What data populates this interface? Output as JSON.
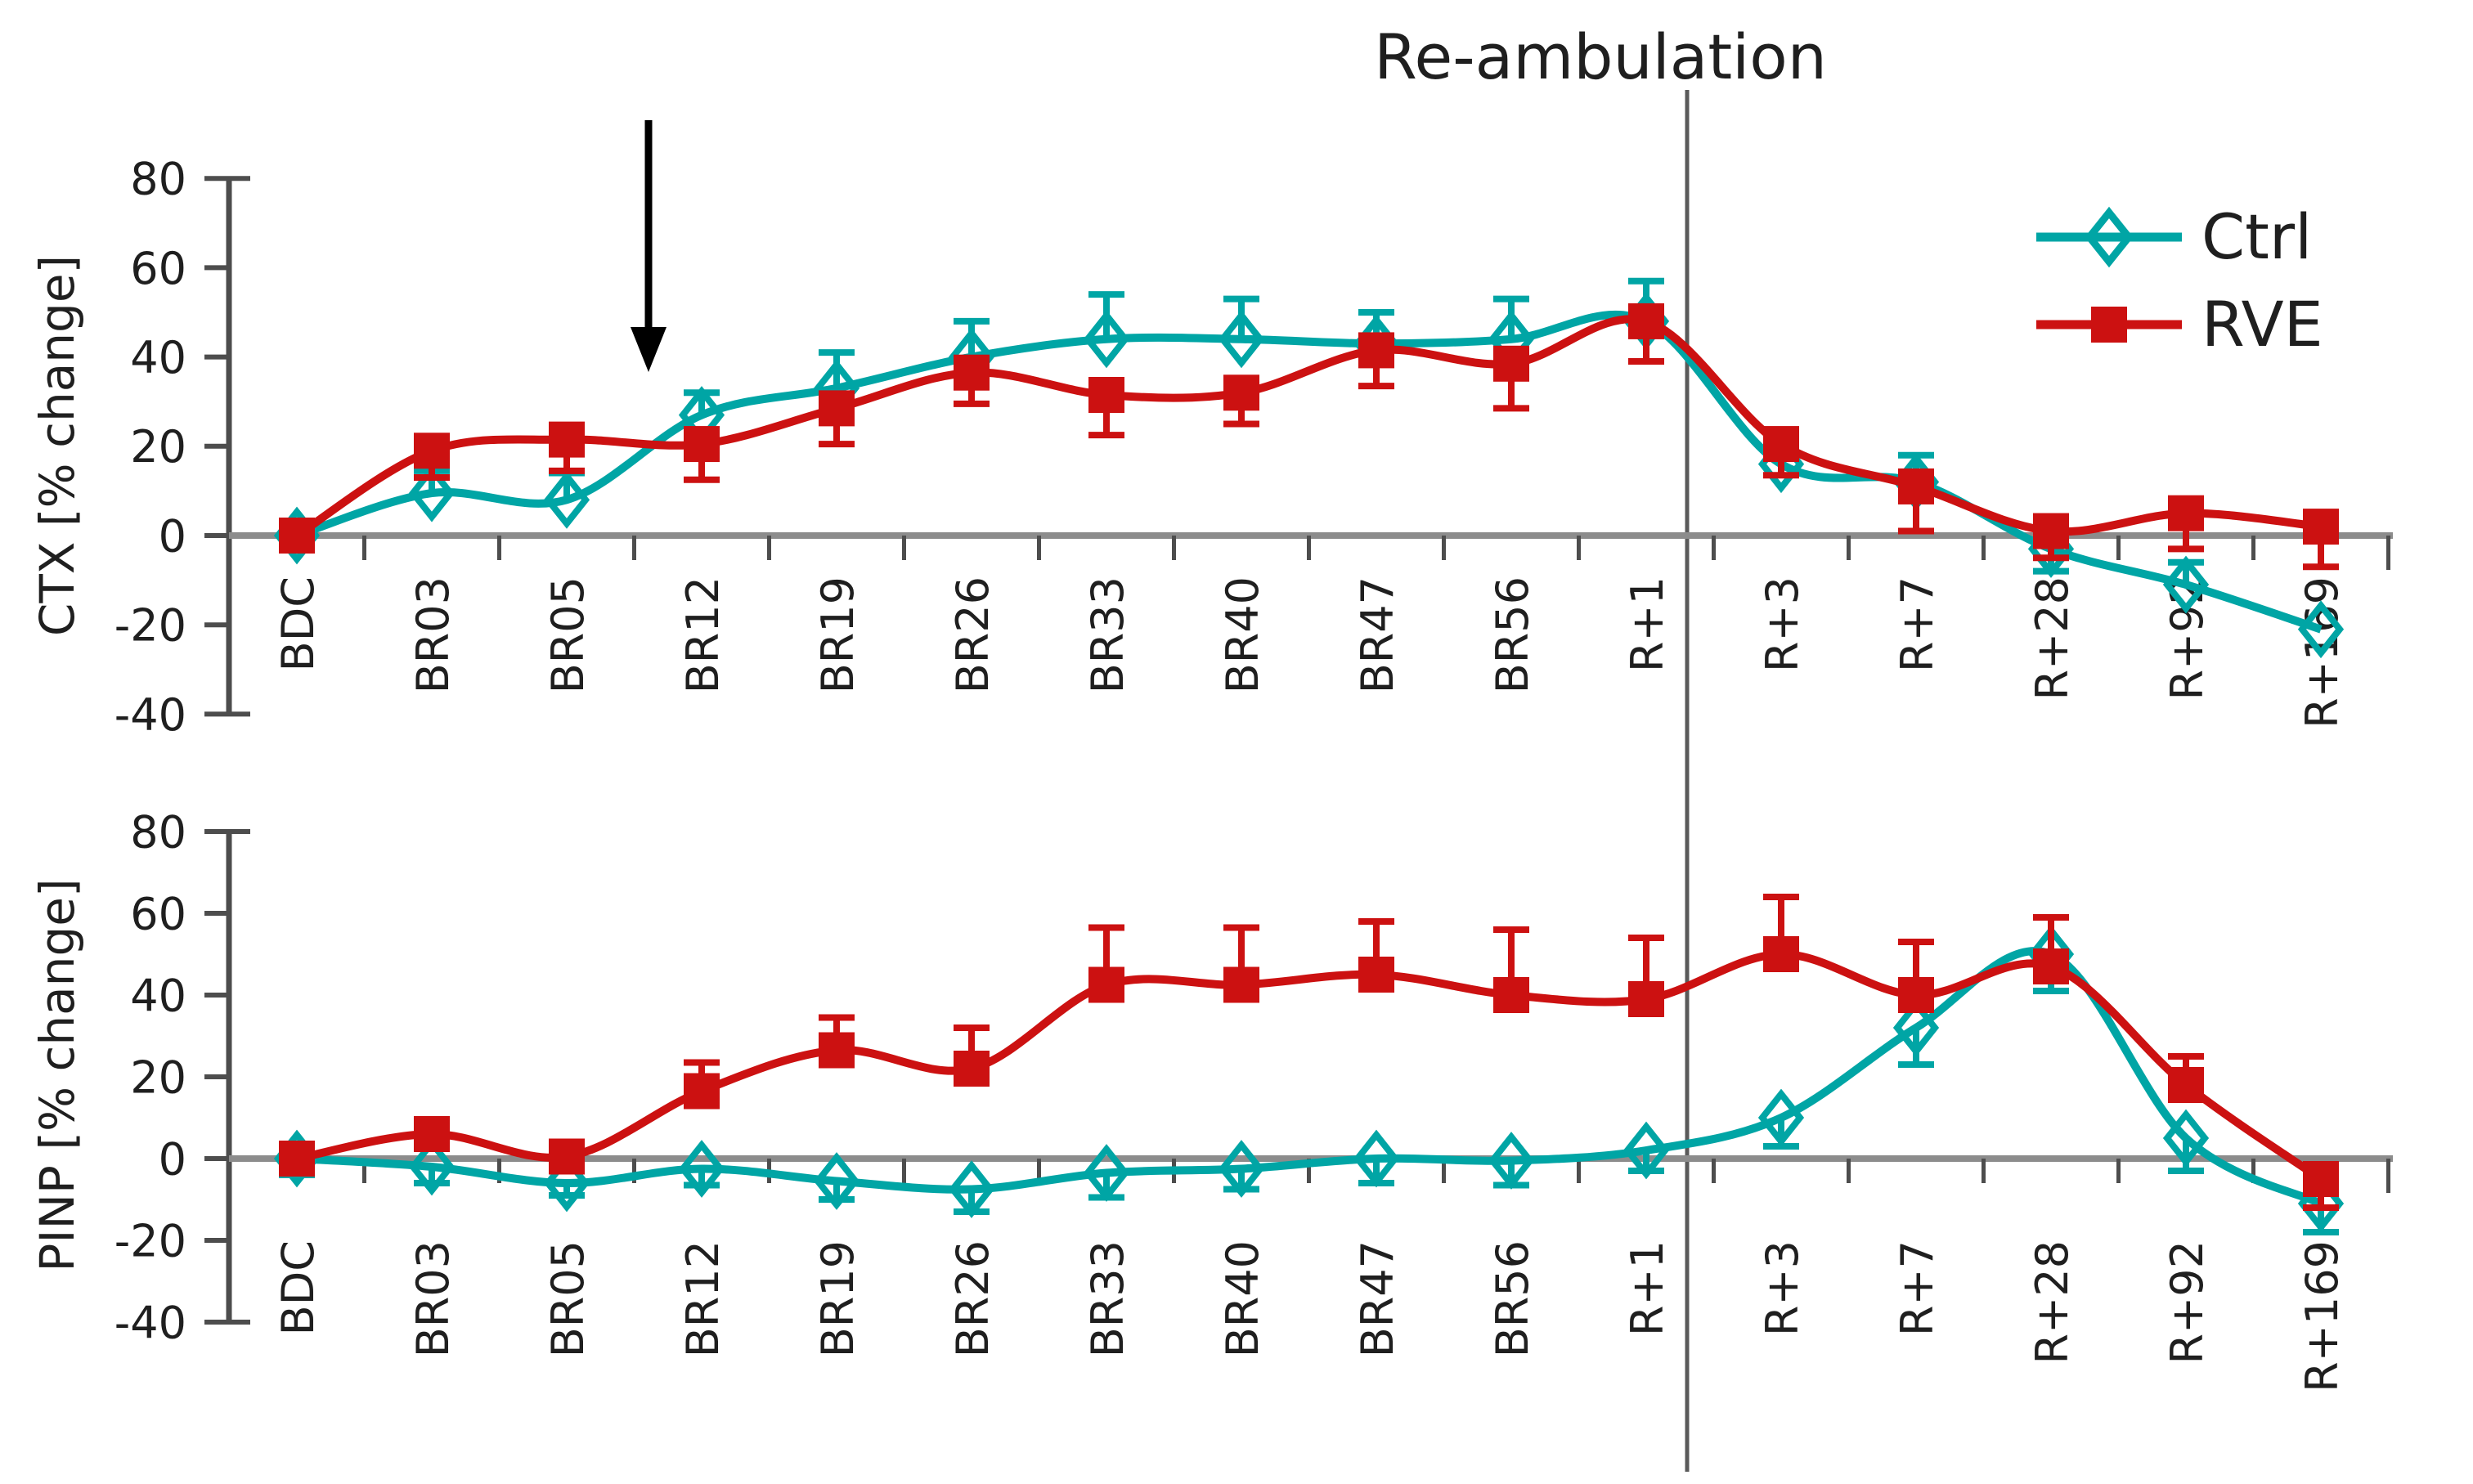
{
  "annotations": {
    "reambulation": "Re-ambulation"
  },
  "legend": {
    "items": [
      {
        "label": "Ctrl",
        "marker": "open-diamond"
      },
      {
        "label": "RVE",
        "marker": "filled-square"
      }
    ]
  },
  "colors": {
    "ctrl": "#00A5A5",
    "rve": "#CC1111",
    "axis_line": "#8C8C8C",
    "axis_dark": "#4D4D4D",
    "text": "#1F1F1F",
    "annotation_line": "#5A5A5A",
    "arrow": "#000000"
  },
  "chart_data": [
    {
      "type": "line",
      "id": "ctx",
      "ylabel": "CTX  [% change]",
      "ylim": [
        -40,
        80
      ],
      "yticks": [
        80,
        60,
        40,
        20,
        0,
        -20,
        -40
      ],
      "grid": false,
      "categories": [
        "BDC",
        "BR03",
        "BR05",
        "BR12",
        "BR19",
        "BR26",
        "BR33",
        "BR40",
        "BR47",
        "BR56",
        "R+1",
        "R+3",
        "R+7",
        "R+28",
        "R+92",
        "R+169"
      ],
      "series": [
        {
          "name": "Ctrl",
          "values": [
            0,
            9.5,
            8,
            27,
            33,
            40,
            44,
            44,
            43,
            44,
            48,
            16,
            12,
            -3,
            -11,
            -21
          ],
          "err_up": [
            3,
            5,
            6,
            5,
            8,
            8,
            10,
            9,
            7,
            9,
            9,
            7,
            6,
            0,
            5,
            0
          ],
          "err_down": [
            3,
            0,
            0,
            0,
            0,
            0,
            0,
            0,
            0,
            0,
            0,
            0,
            0,
            5,
            0,
            0
          ]
        },
        {
          "name": "RVE",
          "values": [
            0,
            19,
            21.5,
            20.5,
            28.5,
            36.5,
            31.5,
            32,
            41.5,
            38.5,
            48,
            20.5,
            11,
            1,
            5,
            2
          ],
          "err_up": [
            3,
            0,
            3,
            0,
            0,
            0,
            0,
            0,
            0,
            0,
            0,
            0,
            0,
            0,
            0,
            0
          ],
          "err_down": [
            3,
            6,
            7,
            8,
            8,
            7,
            9,
            7,
            8,
            10,
            9,
            7,
            10,
            6,
            8,
            9
          ]
        }
      ]
    },
    {
      "type": "line",
      "id": "pinp",
      "ylabel": "PINP [% change]",
      "ylim": [
        -40,
        80
      ],
      "yticks": [
        80,
        60,
        40,
        20,
        0,
        -20,
        -40
      ],
      "grid": false,
      "categories": [
        "BDC",
        "BR03",
        "BR05",
        "BR12",
        "BR19",
        "BR26",
        "BR33",
        "BR40",
        "BR47",
        "BR56",
        "R+1",
        "R+3",
        "R+7",
        "R+28",
        "R+92",
        "R+169"
      ],
      "series": [
        {
          "name": "Ctrl",
          "values": [
            0,
            -2,
            -6,
            -2.5,
            -5.5,
            -7.5,
            -3.5,
            -2.5,
            0,
            -0.5,
            2,
            10,
            32,
            50,
            5,
            -11
          ],
          "err_up": [
            3,
            0,
            0,
            0,
            0,
            0,
            0,
            0,
            0,
            0,
            0,
            0,
            0,
            0,
            0,
            0
          ],
          "err_down": [
            4,
            4,
            3,
            4,
            4.5,
            5.5,
            6,
            5,
            6,
            6,
            5,
            7,
            9,
            9,
            8,
            7
          ]
        },
        {
          "name": "RVE",
          "values": [
            0,
            6,
            0.5,
            16.5,
            26.5,
            22,
            42.5,
            42.5,
            45,
            40,
            39,
            50,
            40,
            47,
            18,
            -5
          ],
          "err_up": [
            3,
            3.5,
            3,
            7,
            8,
            10,
            14,
            14,
            13,
            16,
            15,
            14,
            13,
            12,
            7,
            0
          ],
          "err_down": [
            3,
            0,
            0,
            0,
            0,
            0,
            0,
            0,
            0,
            0,
            0,
            0,
            0,
            0,
            0,
            7
          ]
        }
      ]
    }
  ]
}
